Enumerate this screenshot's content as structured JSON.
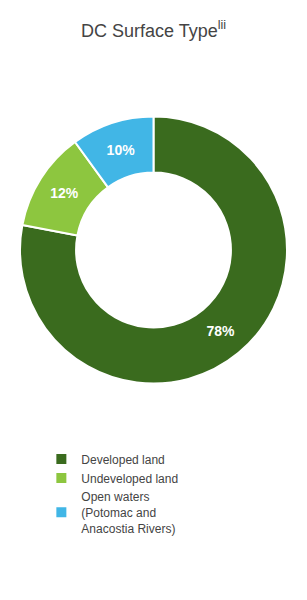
{
  "chart_data": {
    "type": "pie",
    "title": "DC Surface Type",
    "annotations": [
      "lii"
    ],
    "categories": [
      "Developed land",
      "Undeveloped land",
      "Open waters\n(Potomac and\nAnacostia Rivers)"
    ],
    "values": [
      78,
      12,
      10
    ],
    "value_labels": [
      "78%",
      "12%",
      "10%"
    ],
    "colors": [
      "#3a6b1e",
      "#8dc63f",
      "#41b6e6"
    ],
    "data_labels": true,
    "legend": "bottom"
  }
}
